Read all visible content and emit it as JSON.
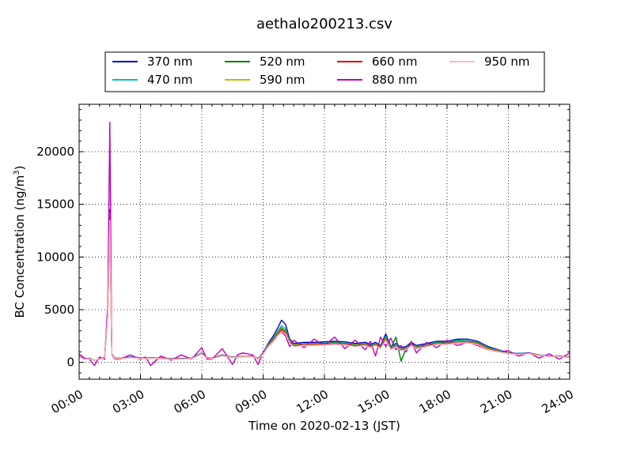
{
  "chart_data": {
    "type": "line",
    "title": "aethalo200213.csv",
    "xlabel": "Time on 2020-02-13 (JST)",
    "ylabel": "BC Concentration (ng/m",
    "ylabel_sup": "3",
    "ylabel_end": ")",
    "xlim": [
      0,
      24
    ],
    "ylim": [
      -1600,
      24500
    ],
    "grid": true,
    "legend_placement": "top-center",
    "x_ticks": [
      {
        "value": 0,
        "label": "00:00"
      },
      {
        "value": 3,
        "label": "03:00"
      },
      {
        "value": 6,
        "label": "06:00"
      },
      {
        "value": 9,
        "label": "09:00"
      },
      {
        "value": 12,
        "label": "12:00"
      },
      {
        "value": 15,
        "label": "15:00"
      },
      {
        "value": 18,
        "label": "18:00"
      },
      {
        "value": 21,
        "label": "21:00"
      },
      {
        "value": 24,
        "label": "24:00"
      }
    ],
    "y_ticks": [
      {
        "value": 0,
        "label": "0"
      },
      {
        "value": 5000,
        "label": "5000"
      },
      {
        "value": 10000,
        "label": "10000"
      },
      {
        "value": 15000,
        "label": "15000"
      },
      {
        "value": 20000,
        "label": "20000"
      }
    ],
    "x": [
      0.0,
      0.25,
      0.5,
      0.75,
      1.0,
      1.25,
      1.4,
      1.5,
      1.6,
      1.75,
      2.0,
      2.5,
      3.0,
      3.25,
      3.5,
      4.0,
      4.5,
      5.0,
      5.5,
      6.0,
      6.25,
      6.5,
      7.0,
      7.5,
      7.75,
      8.0,
      8.5,
      8.75,
      9.0,
      9.25,
      9.5,
      9.7,
      9.9,
      10.1,
      10.3,
      10.5,
      11.0,
      11.5,
      12.0,
      12.5,
      13.0,
      13.5,
      14.0,
      14.25,
      14.5,
      14.75,
      15.0,
      15.25,
      15.5,
      15.75,
      16.0,
      16.25,
      16.5,
      17.0,
      17.5,
      18.0,
      18.5,
      19.0,
      19.5,
      20.0,
      20.5,
      21.0,
      21.5,
      22.0,
      22.5,
      23.0,
      23.5,
      24.0
    ],
    "series": [
      {
        "name": "370 nm",
        "color": "#0000cc",
        "values": [
          600,
          300,
          400,
          200,
          300,
          500,
          5000,
          14500,
          800,
          400,
          400,
          500,
          450,
          400,
          450,
          400,
          350,
          350,
          400,
          900,
          450,
          400,
          700,
          500,
          550,
          550,
          600,
          350,
          900,
          1800,
          2500,
          3200,
          4000,
          3600,
          2200,
          1800,
          1900,
          1900,
          1950,
          2000,
          1950,
          1800,
          1900,
          1700,
          1900,
          1600,
          2700,
          1500,
          1800,
          1400,
          1500,
          1900,
          1600,
          1800,
          2000,
          2000,
          2200,
          2200,
          2000,
          1500,
          1200,
          900,
          850,
          900,
          700,
          600,
          600,
          500
        ]
      },
      {
        "name": "470 nm",
        "color": "#00bfbf",
        "values": [
          580,
          300,
          380,
          200,
          300,
          480,
          4800,
          14200,
          780,
          400,
          390,
          480,
          430,
          390,
          430,
          390,
          340,
          340,
          390,
          880,
          440,
          390,
          680,
          490,
          540,
          540,
          580,
          340,
          850,
          1700,
          2300,
          2900,
          3500,
          3200,
          2000,
          1700,
          1800,
          1800,
          1850,
          1900,
          1850,
          1700,
          1800,
          1600,
          1800,
          1500,
          2500,
          1400,
          1700,
          1300,
          1400,
          1800,
          1500,
          1700,
          1900,
          1900,
          2100,
          2050,
          1900,
          1400,
          1150,
          880,
          830,
          880,
          690,
          590,
          590,
          490
        ]
      },
      {
        "name": "520 nm",
        "color": "#008000",
        "values": [
          560,
          300,
          370,
          200,
          300,
          470,
          4700,
          14000,
          760,
          390,
          380,
          470,
          420,
          380,
          420,
          380,
          330,
          330,
          380,
          860,
          430,
          380,
          660,
          480,
          530,
          530,
          570,
          330,
          820,
          1650,
          2200,
          2800,
          3300,
          3000,
          1950,
          1650,
          1750,
          1750,
          1800,
          1850,
          1800,
          1650,
          1750,
          1550,
          1750,
          1450,
          2400,
          1350,
          2400,
          100,
          1350,
          1750,
          1450,
          1650,
          1850,
          1850,
          2000,
          2000,
          1850,
          1350,
          1100,
          860,
          810,
          860,
          680,
          580,
          580,
          480
        ]
      },
      {
        "name": "590 nm",
        "color": "#bfbf00",
        "values": [
          550,
          300,
          360,
          200,
          300,
          460,
          4600,
          13900,
          750,
          380,
          370,
          460,
          410,
          370,
          410,
          370,
          320,
          320,
          370,
          840,
          420,
          370,
          650,
          470,
          520,
          520,
          560,
          320,
          800,
          1600,
          2150,
          2700,
          3200,
          2900,
          1900,
          1600,
          1700,
          1700,
          1750,
          1800,
          1750,
          1600,
          1700,
          1500,
          1700,
          1400,
          2300,
          1300,
          1600,
          1200,
          1300,
          1700,
          1400,
          1600,
          1800,
          1800,
          1950,
          1950,
          1800,
          1300,
          1080,
          850,
          800,
          850,
          670,
          570,
          570,
          470
        ]
      },
      {
        "name": "660 nm",
        "color": "#e00000",
        "values": [
          540,
          300,
          350,
          200,
          300,
          450,
          4500,
          13800,
          740,
          370,
          360,
          450,
          400,
          360,
          400,
          360,
          310,
          310,
          360,
          820,
          410,
          360,
          640,
          460,
          510,
          510,
          550,
          310,
          780,
          1550,
          2100,
          2600,
          3100,
          2800,
          1850,
          1550,
          1650,
          1650,
          1700,
          1750,
          1700,
          1550,
          1650,
          1450,
          1650,
          1350,
          2200,
          1250,
          1550,
          1150,
          1250,
          1650,
          1350,
          1550,
          1750,
          1750,
          1900,
          1900,
          1750,
          1250,
          1050,
          840,
          790,
          840,
          660,
          560,
          560,
          460
        ]
      },
      {
        "name": "880 nm",
        "color": "#bf00bf",
        "values": [
          800,
          400,
          300,
          -300,
          500,
          300,
          5500,
          22800,
          700,
          300,
          300,
          700,
          300,
          500,
          -300,
          600,
          200,
          700,
          300,
          1400,
          300,
          300,
          1300,
          -200,
          700,
          900,
          700,
          -200,
          900,
          1500,
          2000,
          2500,
          2900,
          2500,
          1500,
          2100,
          1400,
          2200,
          1600,
          2400,
          1300,
          2100,
          1200,
          2000,
          600,
          2400,
          1500,
          2300,
          1200,
          1600,
          1000,
          2000,
          900,
          1900,
          1400,
          2100,
          1600,
          1900,
          1600,
          1200,
          1000,
          1100,
          600,
          900,
          400,
          800,
          300,
          900
        ]
      },
      {
        "name": "950 nm",
        "color": "#ffb6c1",
        "values": [
          520,
          300,
          340,
          200,
          300,
          440,
          4400,
          13500,
          720,
          360,
          350,
          440,
          390,
          350,
          390,
          350,
          300,
          300,
          350,
          800,
          400,
          350,
          620,
          450,
          500,
          500,
          540,
          300,
          760,
          1500,
          2000,
          2500,
          2950,
          2700,
          1800,
          1500,
          1600,
          1600,
          1650,
          1700,
          1650,
          1500,
          1600,
          1400,
          1600,
          1300,
          2100,
          1200,
          1500,
          1100,
          1200,
          1600,
          1300,
          1500,
          1700,
          1700,
          1850,
          1850,
          1700,
          1200,
          1000,
          820,
          770,
          820,
          650,
          550,
          550,
          450
        ]
      }
    ]
  }
}
